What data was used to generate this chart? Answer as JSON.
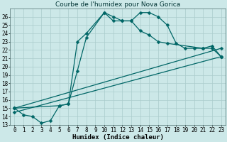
{
  "title": "Courbe de l'humidex pour Nova Gorica",
  "xlabel": "Humidex (Indice chaleur)",
  "background_color": "#cce8e8",
  "grid_color": "#aacccc",
  "line_color": "#006666",
  "xlim": [
    -0.5,
    23.5
  ],
  "ylim": [
    13,
    27
  ],
  "xticks": [
    0,
    1,
    2,
    3,
    4,
    5,
    6,
    7,
    8,
    9,
    10,
    11,
    12,
    13,
    14,
    15,
    16,
    17,
    18,
    19,
    20,
    21,
    22,
    23
  ],
  "yticks": [
    13,
    14,
    15,
    16,
    17,
    18,
    19,
    20,
    21,
    22,
    23,
    24,
    25,
    26
  ],
  "series1_x": [
    0,
    1,
    2,
    3,
    4,
    5,
    6,
    7,
    8,
    10,
    11,
    12,
    13,
    14,
    15,
    16,
    17,
    18,
    19,
    20,
    21,
    22,
    23
  ],
  "series1_y": [
    15,
    14.2,
    14.0,
    13.2,
    13.5,
    15.3,
    15.5,
    19.5,
    23.5,
    26.5,
    25.5,
    25.5,
    25.5,
    26.5,
    26.5,
    26.0,
    25.0,
    22.8,
    22.2,
    22.2,
    22.2,
    22.5,
    21.2
  ],
  "series2_x": [
    0,
    5,
    6,
    7,
    8,
    10,
    11,
    12,
    13,
    14,
    15,
    16,
    17,
    21,
    22,
    23
  ],
  "series2_y": [
    15,
    15.3,
    15.5,
    23.0,
    24.0,
    26.5,
    26.0,
    25.5,
    25.5,
    24.3,
    23.8,
    23.0,
    22.8,
    22.2,
    22.2,
    21.2
  ],
  "series3_x": [
    0,
    23
  ],
  "series3_y": [
    14.5,
    21.2
  ],
  "series4_x": [
    0,
    23
  ],
  "series4_y": [
    15.0,
    22.2
  ],
  "markersize": 2.5,
  "linewidth": 0.9,
  "title_fontsize": 6.5,
  "xlabel_fontsize": 6.5,
  "tick_fontsize": 5.5
}
